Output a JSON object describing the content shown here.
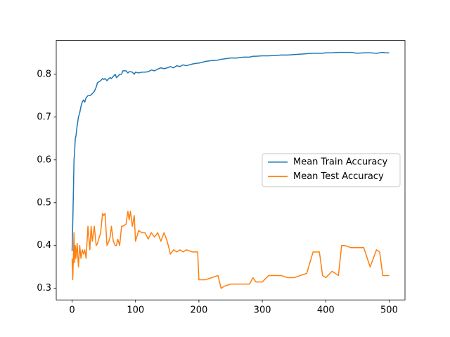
{
  "chart_data": {
    "type": "line",
    "x": [
      0,
      1,
      2,
      3,
      4,
      5,
      6,
      8,
      10,
      12,
      14,
      16,
      18,
      20,
      22,
      25,
      28,
      30,
      32,
      35,
      38,
      40,
      45,
      48,
      50,
      52,
      55,
      58,
      60,
      62,
      65,
      68,
      70,
      72,
      75,
      78,
      80,
      85,
      88,
      90,
      92,
      95,
      98,
      100,
      105,
      110,
      115,
      120,
      125,
      130,
      135,
      140,
      145,
      150,
      155,
      160,
      165,
      170,
      175,
      180,
      190,
      198,
      200,
      210,
      220,
      230,
      235,
      240,
      250,
      260,
      270,
      280,
      285,
      290,
      300,
      310,
      320,
      330,
      340,
      350,
      360,
      370,
      380,
      390,
      395,
      400,
      410,
      420,
      425,
      430,
      440,
      450,
      460,
      470,
      480,
      485,
      490,
      495,
      500
    ],
    "series": [
      {
        "name": "Mean Train Accuracy",
        "color": "#1f77b4",
        "values": [
          0.387,
          0.45,
          0.52,
          0.6,
          0.62,
          0.65,
          0.655,
          0.68,
          0.7,
          0.71,
          0.725,
          0.735,
          0.74,
          0.735,
          0.745,
          0.75,
          0.75,
          0.752,
          0.755,
          0.76,
          0.77,
          0.78,
          0.785,
          0.79,
          0.788,
          0.79,
          0.785,
          0.79,
          0.792,
          0.79,
          0.795,
          0.8,
          0.792,
          0.795,
          0.8,
          0.8,
          0.808,
          0.808,
          0.803,
          0.806,
          0.806,
          0.805,
          0.8,
          0.805,
          0.803,
          0.805,
          0.805,
          0.806,
          0.81,
          0.808,
          0.812,
          0.815,
          0.813,
          0.815,
          0.818,
          0.815,
          0.82,
          0.818,
          0.822,
          0.82,
          0.824,
          0.826,
          0.826,
          0.83,
          0.832,
          0.833,
          0.835,
          0.836,
          0.838,
          0.838,
          0.84,
          0.84,
          0.842,
          0.842,
          0.843,
          0.843,
          0.844,
          0.845,
          0.845,
          0.846,
          0.847,
          0.848,
          0.849,
          0.849,
          0.849,
          0.85,
          0.85,
          0.851,
          0.851,
          0.851,
          0.851,
          0.849,
          0.85,
          0.85,
          0.849,
          0.85,
          0.851,
          0.85,
          0.85
        ]
      },
      {
        "name": "Mean Test Accuracy",
        "color": "#ff7f0e",
        "values": [
          0.37,
          0.32,
          0.37,
          0.43,
          0.36,
          0.4,
          0.37,
          0.405,
          0.35,
          0.4,
          0.37,
          0.39,
          0.38,
          0.39,
          0.37,
          0.445,
          0.39,
          0.445,
          0.41,
          0.445,
          0.4,
          0.405,
          0.43,
          0.475,
          0.47,
          0.475,
          0.4,
          0.41,
          0.42,
          0.445,
          0.41,
          0.4,
          0.4,
          0.415,
          0.4,
          0.445,
          0.445,
          0.45,
          0.48,
          0.46,
          0.48,
          0.445,
          0.47,
          0.41,
          0.435,
          0.43,
          0.43,
          0.415,
          0.43,
          0.42,
          0.43,
          0.41,
          0.43,
          0.41,
          0.38,
          0.39,
          0.385,
          0.39,
          0.385,
          0.39,
          0.385,
          0.385,
          0.32,
          0.32,
          0.325,
          0.33,
          0.3,
          0.305,
          0.31,
          0.31,
          0.31,
          0.31,
          0.325,
          0.315,
          0.315,
          0.33,
          0.33,
          0.33,
          0.325,
          0.325,
          0.33,
          0.335,
          0.385,
          0.385,
          0.33,
          0.325,
          0.34,
          0.33,
          0.4,
          0.4,
          0.395,
          0.395,
          0.395,
          0.35,
          0.39,
          0.385,
          0.33,
          0.33,
          0.33
        ]
      }
    ],
    "xlim": [
      -25,
      525
    ],
    "ylim": [
      0.273,
      0.879
    ],
    "xticks": [
      0,
      100,
      200,
      300,
      400,
      500
    ],
    "yticks": [
      0.3,
      0.4,
      0.5,
      0.6,
      0.7,
      0.8
    ],
    "legend": "center right"
  }
}
